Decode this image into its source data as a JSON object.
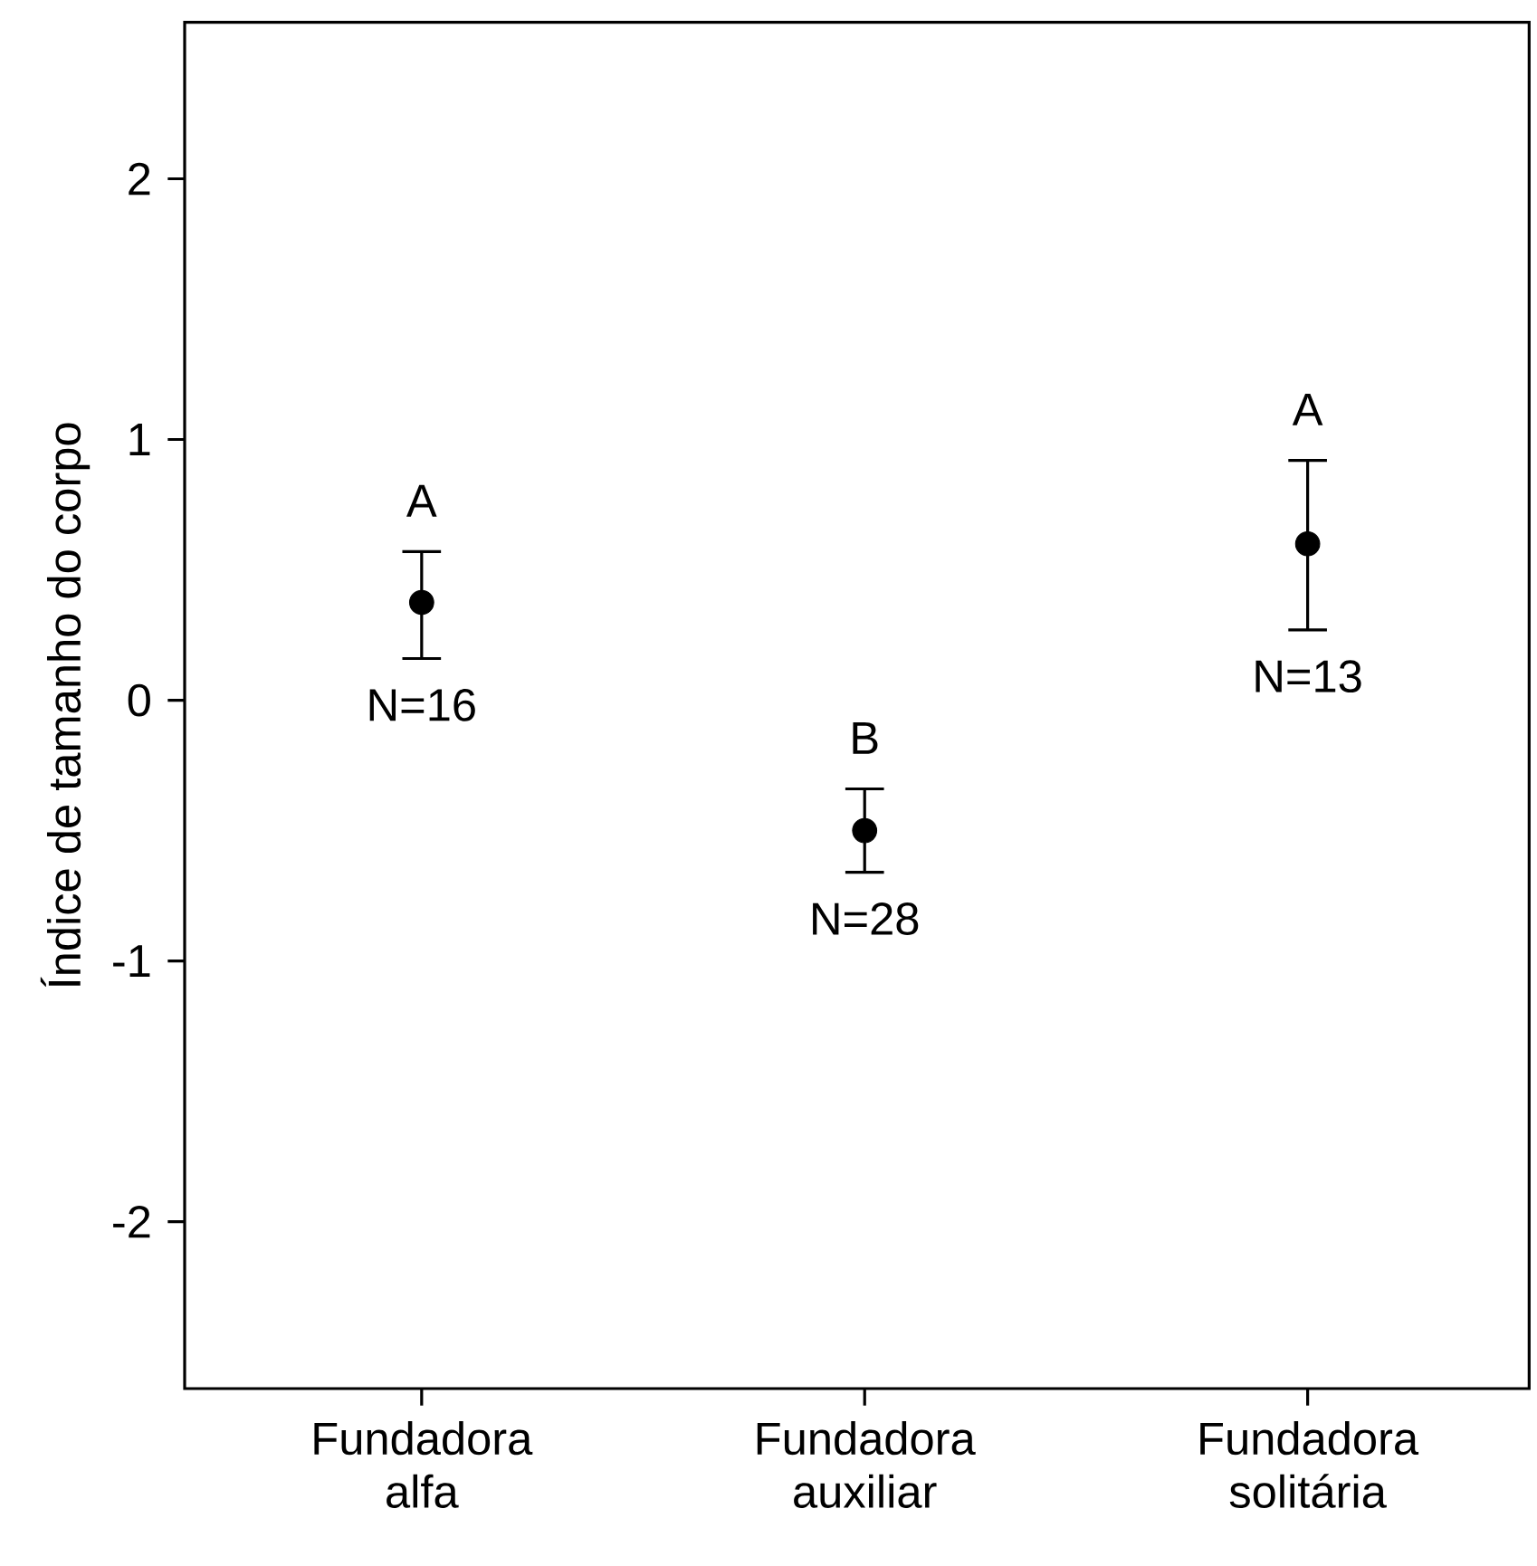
{
  "chart_data": {
    "type": "scatter",
    "ylabel": "Índice de tamanho do corpo",
    "categories": [
      "Fundadora alfa",
      "Fundadora auxiliar",
      "Fundadora solitária"
    ],
    "series": [
      {
        "color": "#000000",
        "values": [
          0.375,
          -0.5,
          0.6
        ],
        "errors": [
          [
            0.16,
            0.57
          ],
          [
            -0.66,
            -0.34
          ],
          [
            0.27,
            0.92
          ]
        ]
      }
    ],
    "marker": "circle",
    "ylim": [
      -2.64,
      2.6
    ],
    "yticks": [
      -2,
      -1,
      0,
      1,
      2
    ],
    "annotations": [
      "A",
      "N=16",
      "B",
      "N=28",
      "A",
      "N=13"
    ]
  }
}
